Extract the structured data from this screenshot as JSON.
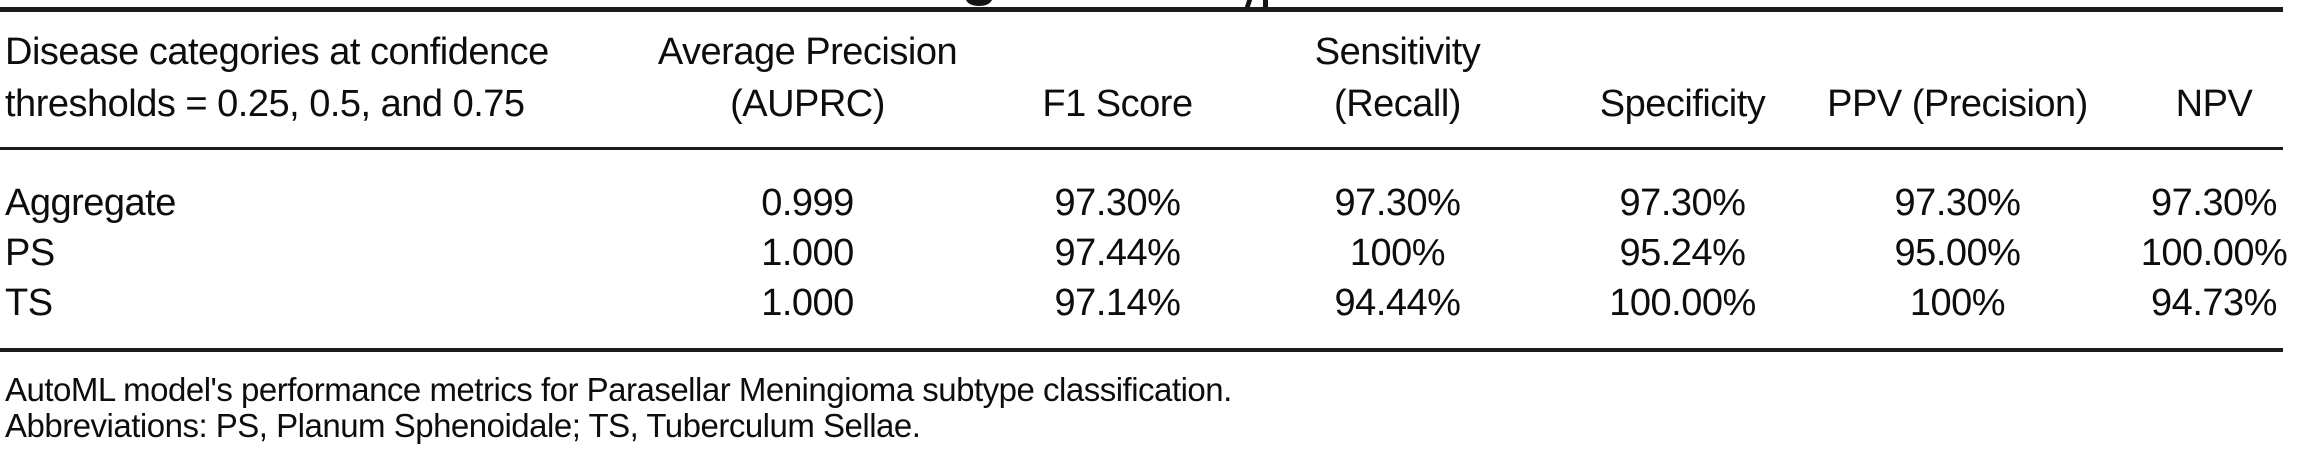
{
  "table": {
    "columns": [
      {
        "line1": "Disease categories at confidence",
        "line2": "thresholds = 0.25, 0.5, and 0.75"
      },
      {
        "line1": "Average Precision",
        "line2": "(AUPRC)"
      },
      {
        "line1": "",
        "line2": "F1 Score"
      },
      {
        "line1": "Sensitivity",
        "line2": "(Recall)"
      },
      {
        "line1": "",
        "line2": "Specificity"
      },
      {
        "line1": "",
        "line2": "PPV (Precision)"
      },
      {
        "line1": "",
        "line2": "NPV"
      }
    ],
    "rows": [
      {
        "category": "Aggregate",
        "auprc": "0.999",
        "f1": "97.30%",
        "sensitivity": "97.30%",
        "specificity": "97.30%",
        "ppv": "97.30%",
        "npv": "97.30%"
      },
      {
        "category": "PS",
        "auprc": "1.000",
        "f1": "97.44%",
        "sensitivity": "100%",
        "specificity": "95.24%",
        "ppv": "95.00%",
        "npv": "100.00%"
      },
      {
        "category": "TS",
        "auprc": "1.000",
        "f1": "97.14%",
        "sensitivity": "94.44%",
        "specificity": "100.00%",
        "ppv": "100%",
        "npv": "94.73%"
      }
    ]
  },
  "footer": {
    "caption": "AutoML model's performance metrics for Parasellar Meningioma subtype classification.",
    "abbreviations": "Abbreviations: PS, Planum Sphenoidale; TS, Tuberculum Sellae."
  },
  "colors": {
    "text": "#0d0d0d",
    "rule": "#1c1c1c",
    "background": "#ffffff"
  }
}
